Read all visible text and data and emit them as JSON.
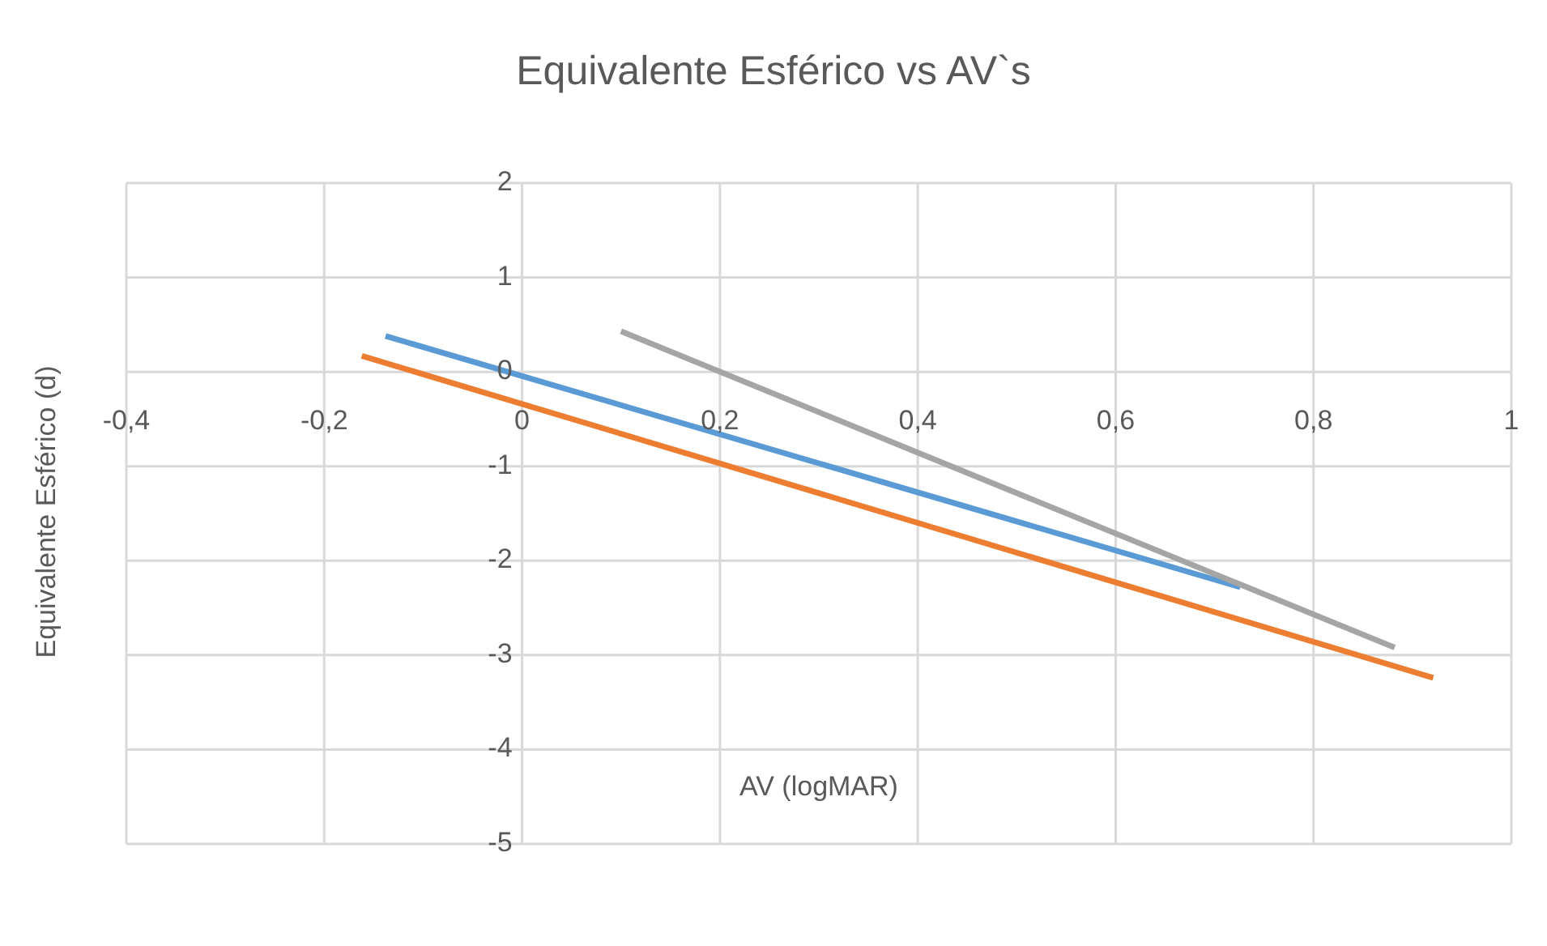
{
  "chart_data": {
    "type": "line",
    "title": "Equivalente Esférico vs AV`s",
    "xlabel": "AV (logMAR)",
    "ylabel": "Equivalente Esférico (d)",
    "series": [
      {
        "color": "#5b9bd5",
        "x": [
          -0.138,
          0.726
        ],
        "values": [
          0.38,
          -2.28
        ]
      },
      {
        "color": "#ed7d31",
        "x": [
          -0.162,
          0.921
        ],
        "values": [
          0.17,
          -3.24
        ]
      },
      {
        "color": "#a5a5a5",
        "x": [
          0.1,
          0.882
        ],
        "values": [
          0.43,
          -2.92
        ]
      }
    ],
    "xlim": [
      -0.4,
      1
    ],
    "xticks": [
      {
        "value": -0.4,
        "label": "-0,4"
      },
      {
        "value": -0.2,
        "label": "-0,2"
      },
      0,
      {
        "value": 0.2,
        "label": "0,2"
      },
      {
        "value": 0.4,
        "label": "0,4"
      },
      {
        "value": 0.6,
        "label": "0,6"
      },
      {
        "value": 0.8,
        "label": "0,8"
      },
      1
    ],
    "ylim": [
      -5,
      2
    ],
    "yticks": [
      -5,
      -4,
      -3,
      -2,
      -1,
      0,
      1,
      2
    ],
    "grid": true,
    "legend": false,
    "marker": "none",
    "line_style": "solid"
  }
}
